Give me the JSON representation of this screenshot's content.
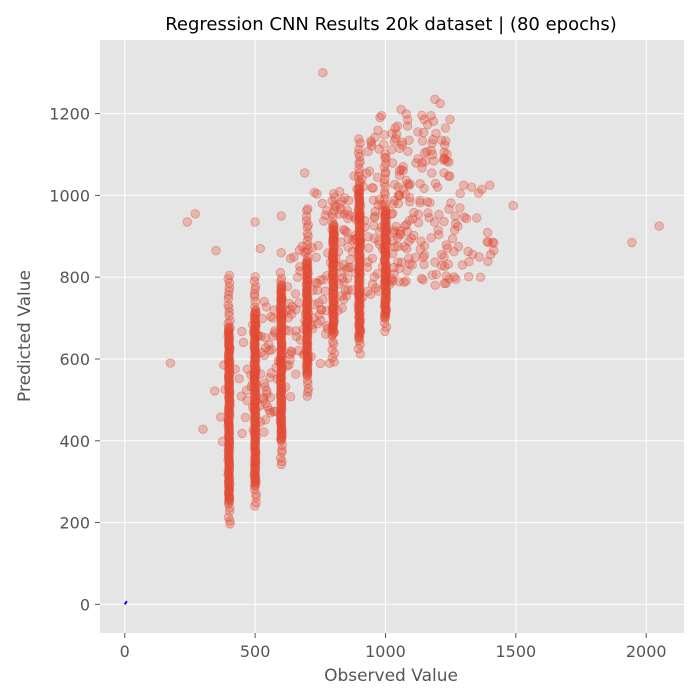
{
  "chart_data": {
    "type": "scatter",
    "title": "Regression CNN Results 20k dataset | (80 epochs)",
    "xlabel": "Observed Value",
    "ylabel": "Predicted Value",
    "xlim": [
      -95,
      2145
    ],
    "ylim": [
      -70,
      1380
    ],
    "xticks": [
      0,
      500,
      1000,
      1500,
      2000
    ],
    "yticks": [
      0,
      200,
      400,
      600,
      800,
      1000,
      1200
    ],
    "grid": true,
    "style": "ggplot",
    "colors": {
      "background": "#e5e5e5",
      "grid": "#ffffff",
      "points": "#e24a33",
      "reference_line": "#0000ff"
    },
    "reference_line": {
      "x": [
        0,
        8
      ],
      "y": [
        0,
        8
      ]
    },
    "clusters": [
      {
        "x": 400,
        "y_min": 195,
        "y_max": 805,
        "dense_min": 250,
        "dense_max": 680,
        "spread": 4
      },
      {
        "x": 500,
        "y_min": 240,
        "y_max": 800,
        "dense_min": 290,
        "dense_max": 720,
        "spread": 4
      },
      {
        "x": 600,
        "y_min": 340,
        "y_max": 810,
        "dense_min": 400,
        "dense_max": 780,
        "spread": 4
      },
      {
        "x": 700,
        "y_min": 510,
        "y_max": 970,
        "dense_min": 560,
        "dense_max": 840,
        "spread": 4
      },
      {
        "x": 800,
        "y_min": 595,
        "y_max": 1010,
        "dense_min": 660,
        "dense_max": 930,
        "spread": 5
      },
      {
        "x": 900,
        "y_min": 615,
        "y_max": 1140,
        "dense_min": 650,
        "dense_max": 1020,
        "spread": 5
      },
      {
        "x": 1000,
        "y_min": 670,
        "y_max": 1100,
        "dense_min": 700,
        "dense_max": 960,
        "spread": 5
      }
    ],
    "scatter_regions": [
      {
        "x_min": 420,
        "x_max": 590,
        "y_min": 420,
        "y_max": 700,
        "n": 40
      },
      {
        "x_min": 520,
        "x_max": 690,
        "y_min": 470,
        "y_max": 760,
        "n": 40
      },
      {
        "x_min": 620,
        "x_max": 790,
        "y_min": 580,
        "y_max": 880,
        "n": 40
      },
      {
        "x_min": 720,
        "x_max": 890,
        "y_min": 680,
        "y_max": 1010,
        "n": 45
      },
      {
        "x_min": 820,
        "x_max": 990,
        "y_min": 740,
        "y_max": 1060,
        "n": 50
      },
      {
        "x_min": 920,
        "x_max": 1100,
        "y_min": 780,
        "y_max": 1200,
        "n": 70
      },
      {
        "x_min": 1030,
        "x_max": 1250,
        "y_min": 780,
        "y_max": 1200,
        "n": 110
      },
      {
        "x_min": 1230,
        "x_max": 1420,
        "y_min": 790,
        "y_max": 1030,
        "n": 25
      }
    ],
    "outliers": [
      [
        175,
        590
      ],
      [
        240,
        935
      ],
      [
        270,
        955
      ],
      [
        300,
        428
      ],
      [
        350,
        865
      ],
      [
        345,
        522
      ],
      [
        380,
        585
      ],
      [
        368,
        458
      ],
      [
        375,
        398
      ],
      [
        385,
        525
      ],
      [
        450,
        418
      ],
      [
        470,
        575
      ],
      [
        520,
        870
      ],
      [
        500,
        935
      ],
      [
        600,
        950
      ],
      [
        600,
        860
      ],
      [
        685,
        610
      ],
      [
        690,
        1055
      ],
      [
        760,
        1300
      ],
      [
        985,
        1195
      ],
      [
        1060,
        1210
      ],
      [
        1085,
        1170
      ],
      [
        1190,
        1235
      ],
      [
        1210,
        1225
      ],
      [
        1175,
        1195
      ],
      [
        1215,
        1135
      ],
      [
        1225,
        1105
      ],
      [
        1200,
        1020
      ],
      [
        1265,
        915
      ],
      [
        1280,
        875
      ],
      [
        1270,
        795
      ],
      [
        1295,
        830
      ],
      [
        1300,
        1025
      ],
      [
        1330,
        1020
      ],
      [
        1350,
        945
      ],
      [
        1365,
        800
      ],
      [
        1370,
        1015
      ],
      [
        1395,
        885
      ],
      [
        1400,
        1025
      ],
      [
        1415,
        865
      ],
      [
        1490,
        975
      ],
      [
        1945,
        885
      ],
      [
        2050,
        925
      ]
    ]
  }
}
